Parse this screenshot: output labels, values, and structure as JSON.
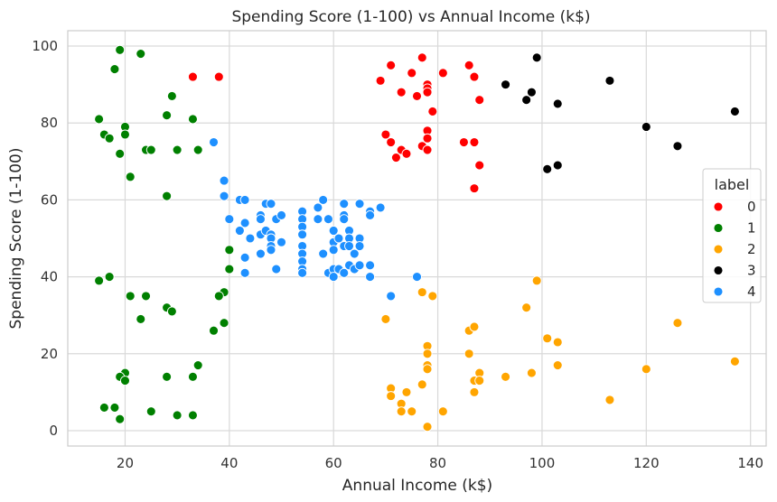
{
  "chart_data": {
    "type": "scatter",
    "title": "Spending Score (1-100) vs Annual Income (k$)",
    "xlabel": "Annual Income (k$)",
    "ylabel": "Spending Score (1-100)",
    "xlim": [
      9,
      143
    ],
    "ylim": [
      -4,
      104
    ],
    "xticks": [
      20,
      40,
      60,
      80,
      100,
      120,
      140
    ],
    "yticks": [
      0,
      20,
      40,
      60,
      80,
      100
    ],
    "grid": true,
    "legend_title": "label",
    "legend_position": "right",
    "series": [
      {
        "name": "0",
        "color": "#ff0000",
        "points": [
          [
            33,
            92
          ],
          [
            38,
            92
          ],
          [
            69,
            91
          ],
          [
            71,
            95
          ],
          [
            73,
            88
          ],
          [
            75,
            93
          ],
          [
            76,
            87
          ],
          [
            77,
            97
          ],
          [
            77,
            74
          ],
          [
            78,
            90
          ],
          [
            78,
            89
          ],
          [
            78,
            88
          ],
          [
            78,
            78
          ],
          [
            78,
            76
          ],
          [
            78,
            73
          ],
          [
            79,
            83
          ],
          [
            81,
            93
          ],
          [
            86,
            95
          ],
          [
            87,
            92
          ],
          [
            88,
            86
          ],
          [
            70,
            77
          ],
          [
            71,
            75
          ],
          [
            72,
            71
          ],
          [
            73,
            73
          ],
          [
            74,
            72
          ],
          [
            85,
            75
          ],
          [
            87,
            75
          ],
          [
            88,
            69
          ],
          [
            87,
            63
          ]
        ]
      },
      {
        "name": "1",
        "color": "#008000",
        "points": [
          [
            19,
            99
          ],
          [
            23,
            98
          ],
          [
            18,
            94
          ],
          [
            29,
            87
          ],
          [
            28,
            82
          ],
          [
            33,
            81
          ],
          [
            15,
            81
          ],
          [
            20,
            79
          ],
          [
            20,
            77
          ],
          [
            16,
            77
          ],
          [
            17,
            76
          ],
          [
            24,
            73
          ],
          [
            25,
            73
          ],
          [
            30,
            73
          ],
          [
            34,
            73
          ],
          [
            19,
            72
          ],
          [
            21,
            66
          ],
          [
            28,
            61
          ],
          [
            40,
            47
          ],
          [
            40,
            42
          ],
          [
            15,
            39
          ],
          [
            17,
            40
          ],
          [
            21,
            35
          ],
          [
            24,
            35
          ],
          [
            39,
            36
          ],
          [
            38,
            35
          ],
          [
            28,
            32
          ],
          [
            29,
            31
          ],
          [
            23,
            29
          ],
          [
            39,
            28
          ],
          [
            37,
            26
          ],
          [
            34,
            17
          ],
          [
            20,
            15
          ],
          [
            19,
            14
          ],
          [
            28,
            14
          ],
          [
            33,
            14
          ],
          [
            20,
            13
          ],
          [
            16,
            6
          ],
          [
            18,
            6
          ],
          [
            25,
            5
          ],
          [
            30,
            4
          ],
          [
            33,
            4
          ],
          [
            19,
            3
          ]
        ]
      },
      {
        "name": "2",
        "color": "#ffa500",
        "points": [
          [
            71,
            35
          ],
          [
            77,
            36
          ],
          [
            79,
            35
          ],
          [
            99,
            39
          ],
          [
            97,
            32
          ],
          [
            70,
            29
          ],
          [
            86,
            26
          ],
          [
            87,
            27
          ],
          [
            126,
            28
          ],
          [
            101,
            24
          ],
          [
            103,
            23
          ],
          [
            78,
            22
          ],
          [
            78,
            20
          ],
          [
            86,
            20
          ],
          [
            137,
            18
          ],
          [
            103,
            17
          ],
          [
            78,
            17
          ],
          [
            78,
            16
          ],
          [
            120,
            16
          ],
          [
            98,
            15
          ],
          [
            88,
            15
          ],
          [
            93,
            14
          ],
          [
            87,
            13
          ],
          [
            88,
            13
          ],
          [
            77,
            12
          ],
          [
            71,
            11
          ],
          [
            71,
            9
          ],
          [
            74,
            10
          ],
          [
            87,
            10
          ],
          [
            113,
            8
          ],
          [
            73,
            7
          ],
          [
            73,
            5
          ],
          [
            75,
            5
          ],
          [
            81,
            5
          ],
          [
            78,
            1
          ]
        ]
      },
      {
        "name": "3",
        "color": "#000000",
        "points": [
          [
            99,
            97
          ],
          [
            113,
            91
          ],
          [
            93,
            90
          ],
          [
            98,
            88
          ],
          [
            97,
            86
          ],
          [
            103,
            85
          ],
          [
            137,
            83
          ],
          [
            120,
            79
          ],
          [
            126,
            74
          ],
          [
            103,
            69
          ],
          [
            101,
            68
          ]
        ]
      },
      {
        "name": "4",
        "color": "#1e90ff",
        "points": [
          [
            37,
            75
          ],
          [
            39,
            65
          ],
          [
            39,
            61
          ],
          [
            40,
            55
          ],
          [
            42,
            60
          ],
          [
            43,
            60
          ],
          [
            42,
            52
          ],
          [
            43,
            54
          ],
          [
            44,
            50
          ],
          [
            43,
            45
          ],
          [
            43,
            41
          ],
          [
            46,
            56
          ],
          [
            46,
            55
          ],
          [
            46,
            51
          ],
          [
            46,
            46
          ],
          [
            47,
            52
          ],
          [
            47,
            59
          ],
          [
            48,
            51
          ],
          [
            48,
            50
          ],
          [
            48,
            48
          ],
          [
            48,
            47
          ],
          [
            48,
            59
          ],
          [
            49,
            55
          ],
          [
            49,
            42
          ],
          [
            50,
            56
          ],
          [
            50,
            49
          ],
          [
            54,
            57
          ],
          [
            54,
            55
          ],
          [
            54,
            53
          ],
          [
            54,
            51
          ],
          [
            54,
            48
          ],
          [
            54,
            46
          ],
          [
            54,
            44
          ],
          [
            54,
            42
          ],
          [
            54,
            41
          ],
          [
            57,
            58
          ],
          [
            57,
            55
          ],
          [
            58,
            60
          ],
          [
            58,
            46
          ],
          [
            59,
            55
          ],
          [
            59,
            41
          ],
          [
            60,
            52
          ],
          [
            60,
            49
          ],
          [
            60,
            47
          ],
          [
            60,
            42
          ],
          [
            60,
            40
          ],
          [
            61,
            50
          ],
          [
            61,
            42
          ],
          [
            62,
            59
          ],
          [
            62,
            56
          ],
          [
            62,
            55
          ],
          [
            62,
            48
          ],
          [
            62,
            41
          ],
          [
            63,
            52
          ],
          [
            63,
            50
          ],
          [
            63,
            48
          ],
          [
            63,
            43
          ],
          [
            64,
            46
          ],
          [
            64,
            42
          ],
          [
            65,
            59
          ],
          [
            65,
            50
          ],
          [
            65,
            48
          ],
          [
            65,
            43
          ],
          [
            67,
            57
          ],
          [
            67,
            56
          ],
          [
            67,
            43
          ],
          [
            67,
            40
          ],
          [
            69,
            58
          ],
          [
            71,
            35
          ],
          [
            76,
            40
          ]
        ]
      }
    ]
  }
}
